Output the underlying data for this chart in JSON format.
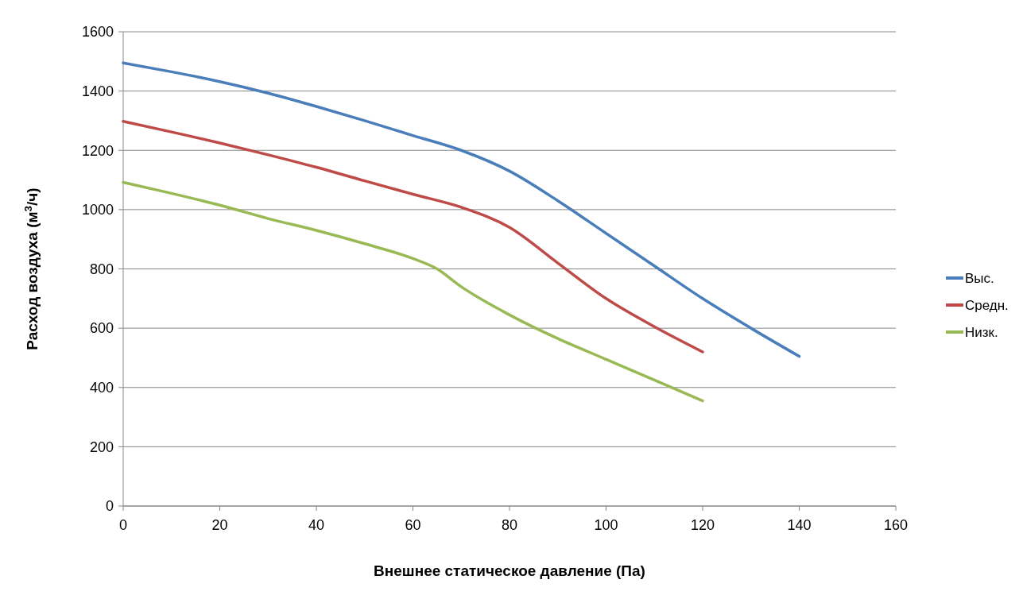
{
  "chart_data": {
    "type": "line",
    "xlabel": "Внешнее статическое давление (Па)",
    "ylabel": "Расход воздуха (м$^{3}$/ч)",
    "xlim": [
      0,
      160
    ],
    "xticks": [
      0,
      20,
      40,
      60,
      80,
      100,
      120,
      140,
      160
    ],
    "ylim": [
      0,
      1600
    ],
    "yticks": [
      0,
      200,
      400,
      600,
      800,
      1000,
      1200,
      1400,
      1600
    ],
    "grid": "y",
    "legend": "right",
    "marker": "none",
    "series": [
      {
        "name": "Выс.",
        "color": "#4a7ebb",
        "x": [
          0,
          10,
          20,
          30,
          40,
          50,
          60,
          70,
          80,
          90,
          100,
          110,
          120,
          130,
          140
        ],
        "values": [
          1495,
          1465,
          1432,
          1393,
          1348,
          1300,
          1250,
          1200,
          1130,
          1030,
          920,
          810,
          700,
          600,
          505
        ]
      },
      {
        "name": "Средн.",
        "color": "#be4b48",
        "x": [
          0,
          10,
          20,
          30,
          40,
          50,
          60,
          70,
          80,
          90,
          100,
          110,
          120
        ],
        "values": [
          1298,
          1262,
          1225,
          1185,
          1143,
          1097,
          1052,
          1008,
          940,
          820,
          700,
          605,
          520
        ]
      },
      {
        "name": "Низк.",
        "color": "#98b954",
        "x": [
          0,
          10,
          20,
          30,
          40,
          50,
          60,
          65,
          70,
          80,
          90,
          100,
          110,
          120
        ],
        "values": [
          1092,
          1055,
          1015,
          970,
          930,
          885,
          835,
          800,
          740,
          645,
          565,
          495,
          425,
          355
        ]
      }
    ]
  }
}
